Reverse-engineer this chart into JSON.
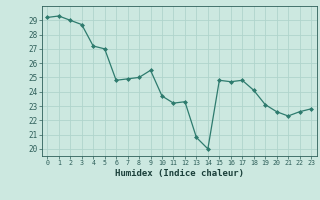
{
  "x": [
    0,
    1,
    2,
    3,
    4,
    5,
    6,
    7,
    8,
    9,
    10,
    11,
    12,
    13,
    14,
    15,
    16,
    17,
    18,
    19,
    20,
    21,
    22,
    23
  ],
  "y": [
    29.2,
    29.3,
    29.0,
    28.7,
    27.2,
    27.0,
    24.8,
    24.9,
    25.0,
    25.5,
    23.7,
    23.2,
    23.3,
    20.8,
    20.0,
    24.8,
    24.7,
    24.8,
    24.1,
    23.1,
    22.6,
    22.3,
    22.6,
    22.8
  ],
  "xlabel": "Humidex (Indice chaleur)",
  "ylabel": "",
  "title": "",
  "xlim": [
    -0.5,
    23.5
  ],
  "ylim": [
    19.5,
    30.0
  ],
  "yticks": [
    20,
    21,
    22,
    23,
    24,
    25,
    26,
    27,
    28,
    29
  ],
  "xticks": [
    0,
    1,
    2,
    3,
    4,
    5,
    6,
    7,
    8,
    9,
    10,
    11,
    12,
    13,
    14,
    15,
    16,
    17,
    18,
    19,
    20,
    21,
    22,
    23
  ],
  "line_color": "#2e7b6e",
  "marker_color": "#2e7b6e",
  "bg_color": "#cce8e0",
  "grid_color": "#b0d4cc",
  "tick_label_color": "#2e5f5a",
  "xlabel_color": "#1a3f3a"
}
